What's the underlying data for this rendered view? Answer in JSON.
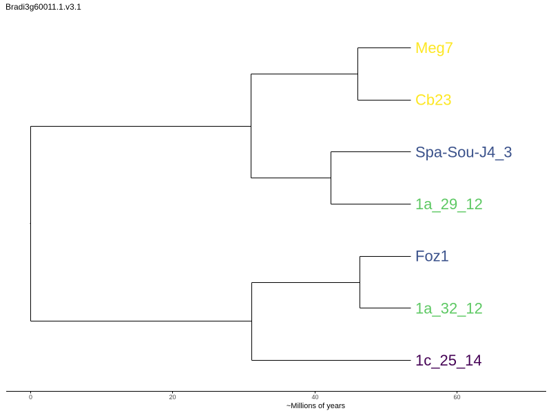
{
  "title": "Bradi3g60011.1.v3.1",
  "chart_data": {
    "type": "tree",
    "xlabel": "~Millions of years",
    "xlim": [
      -3.4,
      72.6
    ],
    "xticks": [
      0,
      20,
      40,
      60
    ],
    "tips": [
      {
        "name": "Meg7",
        "color": "#FDE725"
      },
      {
        "name": "Cb23",
        "color": "#FDE725"
      },
      {
        "name": "Spa-Sou-J4_3",
        "color": "#3B528B"
      },
      {
        "name": "1a_29_12",
        "color": "#5DC863"
      },
      {
        "name": "Foz1",
        "color": "#3B528B"
      },
      {
        "name": "1a_32_12",
        "color": "#5DC863"
      },
      {
        "name": "1c_25_14",
        "color": "#440154"
      }
    ],
    "tip_age": 53.5,
    "nodes": [
      {
        "id": "n1",
        "age": 0,
        "children": [
          "n2",
          "n5"
        ]
      },
      {
        "id": "n2",
        "age": 31,
        "children": [
          "n3",
          "n4"
        ]
      },
      {
        "id": "n3",
        "age": 46,
        "children": [
          "Meg7",
          "Cb23"
        ]
      },
      {
        "id": "n4",
        "age": 42.3,
        "children": [
          "Spa-Sou-J4_3",
          "1a_29_12"
        ]
      },
      {
        "id": "n5",
        "age": 31.1,
        "children": [
          "n6",
          "1c_25_14"
        ]
      },
      {
        "id": "n6",
        "age": 46.3,
        "children": [
          "Foz1",
          "1a_32_12"
        ]
      }
    ],
    "root": "n1"
  }
}
